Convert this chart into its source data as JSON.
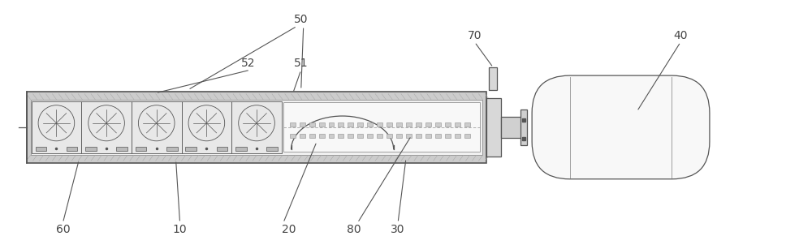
{
  "bg_color": "#ffffff",
  "line_color": "#909090",
  "dark_line": "#555555",
  "label_color": "#444444",
  "figsize": [
    10.0,
    3.07
  ],
  "dpi": 100
}
